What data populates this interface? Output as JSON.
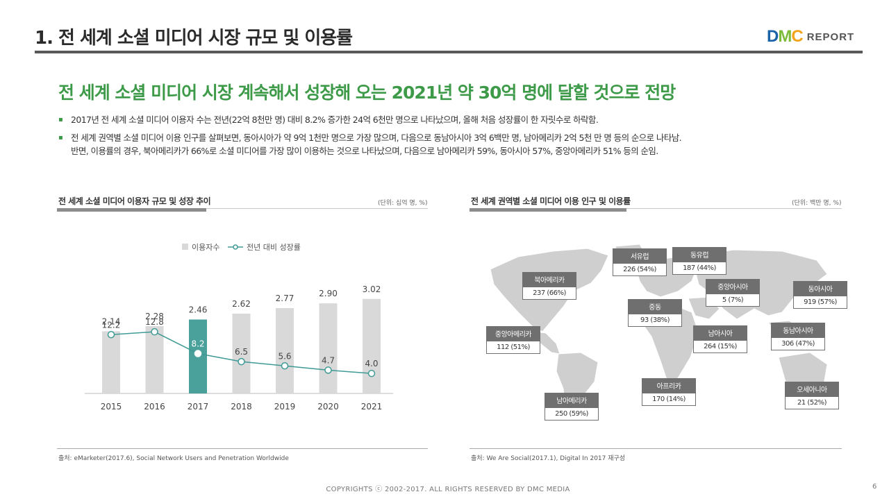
{
  "header": {
    "title": "1. 전 세계 소셜 미디어 시장 규모 및 이용률",
    "logo_d": "D",
    "logo_m": "M",
    "logo_c": "C",
    "logo_report": "REPORT"
  },
  "headline": "전 세계 소셜 미디어 시장 계속해서 성장해 오는 2021년 약 30억 명에 달할 것으로 전망",
  "bullets": [
    {
      "marker": "▪",
      "lines": [
        "2017년 전 세계 소셜 미디어 이용자 수는 전년(22억 8천만 명) 대비 8.2% 증가한 24억 6천만 명으로 나타났으며, 올해 처음 성장률이 한 자릿수로 하락함."
      ]
    },
    {
      "marker": "▪",
      "lines": [
        "전 세계 권역별 소셜 미디어 이용 인구를 살펴보면, 동아시아가 약 9억 1천만 명으로 가장 많으며, 다음으로 동남아시아 3억 6백만 명, 남아메리카 2억 5천 만 명 등의 순으로 나타남.",
        "반면, 이용률의 경우, 북아메리카가 66%로 소셜 미디어를 가장 많이 이용하는 것으로 나타났으며, 다음으로 남아메리카 59%, 동아시아 57%, 중앙아메리카 51% 등의 순임."
      ]
    }
  ],
  "left_panel": {
    "title": "전 세계 소셜 미디어 이용자 규모 및 성장 추이",
    "unit": "(단위: 십억 명, %)",
    "source": "출처: eMarketer(2017.6), Social Network Users and Penetration Worldwide"
  },
  "right_panel": {
    "title": "전 세계 권역별 소셜 미디어 이용 인구 및 이용률",
    "unit": "(단위: 백만 명, %)",
    "source": "출처: We Are Social(2017.1), Digital In 2017 재구성",
    "regions": [
      {
        "name": "서유럽",
        "value": "226 (54%)"
      },
      {
        "name": "동유럽",
        "value": "187 (44%)"
      },
      {
        "name": "북아메리카",
        "value": "237 (66%)"
      },
      {
        "name": "중앙아시아",
        "value": "5 (7%)"
      },
      {
        "name": "동아시아",
        "value": "919 (57%)"
      },
      {
        "name": "중동",
        "value": "93 (38%)"
      },
      {
        "name": "중앙아메리카",
        "value": "112 (51%)"
      },
      {
        "name": "남아시아",
        "value": "264 (15%)"
      },
      {
        "name": "동남아시아",
        "value": "306 (47%)"
      },
      {
        "name": "아프리카",
        "value": "170 (14%)"
      },
      {
        "name": "오세아니아",
        "value": "21 (52%)"
      },
      {
        "name": "남아메리카",
        "value": "250 (59%)"
      }
    ]
  },
  "chart_data": {
    "type": "bar",
    "title": "전 세계 소셜 미디어 이용자 규모 및 성장 추이",
    "categories": [
      "2015",
      "2016",
      "2017",
      "2018",
      "2019",
      "2020",
      "2021"
    ],
    "series": [
      {
        "name": "이용자수",
        "type": "bar",
        "values": [
          2.14,
          2.28,
          2.46,
          2.62,
          2.77,
          2.9,
          3.02
        ],
        "labels": [
          "2.14",
          "2.28",
          "2.46",
          "2.62",
          "2.77",
          "2.90",
          "3.02"
        ]
      },
      {
        "name": "전년 대비 성장률",
        "type": "line",
        "values": [
          12.2,
          12.8,
          8.2,
          6.5,
          5.6,
          4.7,
          4.0
        ],
        "labels": [
          "12.2",
          "12.8",
          "8.2",
          "6.5",
          "5.6",
          "4.7",
          "4.0"
        ]
      }
    ],
    "highlight_category": "2017",
    "legend": [
      "이용자수",
      "전년 대비 성장률"
    ],
    "legend_position": "top-center",
    "colors": {
      "bar": "#d9d9d9",
      "bar_highlight": "#4aa19b",
      "line": "#3f9a96"
    }
  },
  "footer": {
    "copyright": "COPYRIGHTS ⓒ 2002-2017.  ALL RIGHTS RESERVED BY DMC MEDIA",
    "page": "6"
  }
}
